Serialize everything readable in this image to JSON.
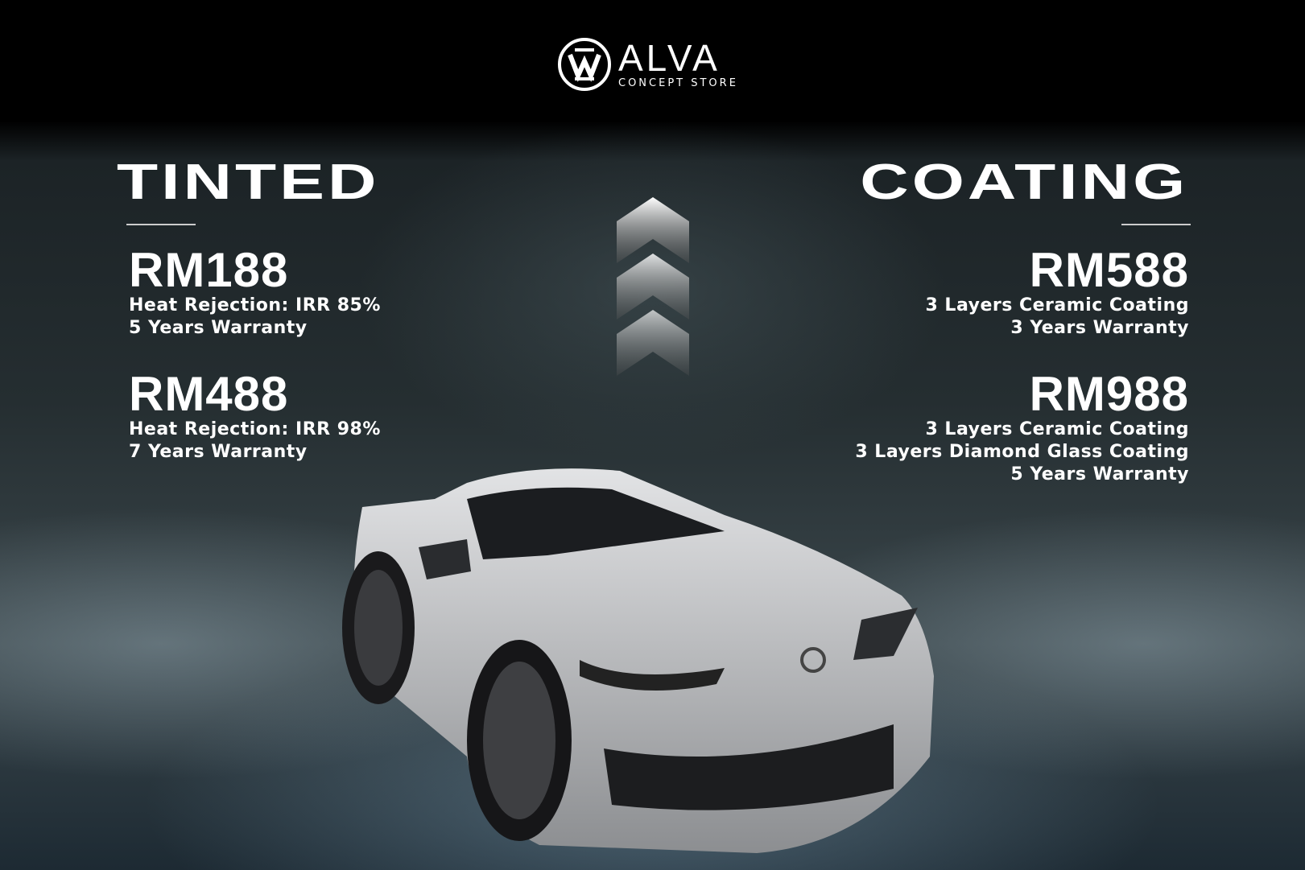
{
  "brand": {
    "name": "ALVA",
    "tagline": "CONCEPT STORE"
  },
  "tinted": {
    "title": "TINTED",
    "packages": [
      {
        "price": "RM188",
        "lines": [
          "Heat Rejection: IRR 85%",
          "5 Years Warranty"
        ]
      },
      {
        "price": "RM488",
        "lines": [
          "Heat Rejection: IRR 98%",
          "7 Years Warranty"
        ]
      }
    ]
  },
  "coating": {
    "title": "COATING",
    "packages": [
      {
        "price": "RM588",
        "lines": [
          "3 Layers Ceramic Coating",
          "3 Years Warranty"
        ]
      },
      {
        "price": "RM988",
        "lines": [
          "3 Layers Ceramic Coating",
          "3 Layers Diamond Glass Coating",
          "5 Years Warranty"
        ]
      }
    ]
  },
  "colors": {
    "background": "#000000",
    "text": "#ffffff",
    "car": "#c8c9cb"
  }
}
